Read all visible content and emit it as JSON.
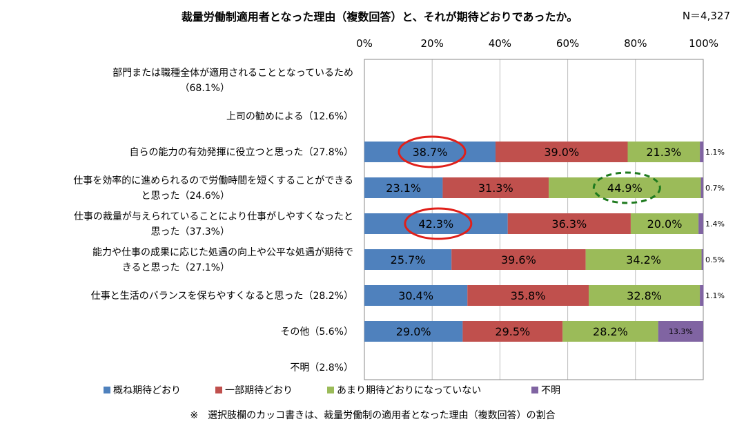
{
  "chart_data": {
    "type": "bar",
    "orientation": "horizontal",
    "stacked": true,
    "title": "裁量労働制適用者となった理由（複数回答）と、それが期待どおりであったか。",
    "sample_size": "N＝4,327",
    "xlim": [
      0,
      100
    ],
    "x_ticks": [
      "0%",
      "20%",
      "40%",
      "60%",
      "80%",
      "100%"
    ],
    "grid": true,
    "legend_placement": "bottom",
    "categories": [
      [
        "部門または職種全体が適用されることとなっているため",
        "（68.1%）"
      ],
      [
        "上司の勧めによる（12.6%）"
      ],
      [
        "自らの能力の有効発揮に役立つと思った（27.8%）"
      ],
      [
        "仕事を効率的に進められるので労働時間を短くすることができる",
        "と思った（24.6%）"
      ],
      [
        "仕事の裁量が与えられていることにより仕事がしやすくなったと",
        "思った（37.3%）"
      ],
      [
        "能力や仕事の成果に応じた処遇の向上や公平な処遇が期待で",
        "きると思った（27.1%）"
      ],
      [
        "仕事と生活のバランスを保ちやすくなると思った（28.2%）"
      ],
      [
        "その他（5.6%）"
      ],
      [
        "不明（2.8%）"
      ]
    ],
    "series": [
      {
        "name": "概ね期待どおり",
        "color": "#4f81bd",
        "values": [
          null,
          null,
          38.7,
          23.1,
          42.3,
          25.7,
          30.4,
          29.0,
          null
        ]
      },
      {
        "name": "一部期待どおり",
        "color": "#c0504d",
        "values": [
          null,
          null,
          39.0,
          31.3,
          36.3,
          39.6,
          35.8,
          29.5,
          null
        ]
      },
      {
        "name": "あまり期待どおりになっていない",
        "color": "#9bbb59",
        "values": [
          null,
          null,
          21.3,
          44.9,
          20.0,
          34.2,
          32.8,
          28.2,
          null
        ]
      },
      {
        "name": "不明",
        "color": "#8064a2",
        "values": [
          null,
          null,
          1.1,
          0.7,
          1.4,
          0.5,
          1.1,
          13.3,
          null
        ]
      }
    ],
    "highlights": [
      {
        "category_index": 2,
        "series_index": 0,
        "style": "solid",
        "color": "#e0201a"
      },
      {
        "category_index": 3,
        "series_index": 2,
        "style": "dashed",
        "color": "#1e7a1e"
      },
      {
        "category_index": 4,
        "series_index": 0,
        "style": "solid",
        "color": "#e0201a"
      }
    ],
    "footnote": "※　選択肢欄のカッコ書きは、裁量労働制の適用者となった理由（複数回答）の割合"
  }
}
